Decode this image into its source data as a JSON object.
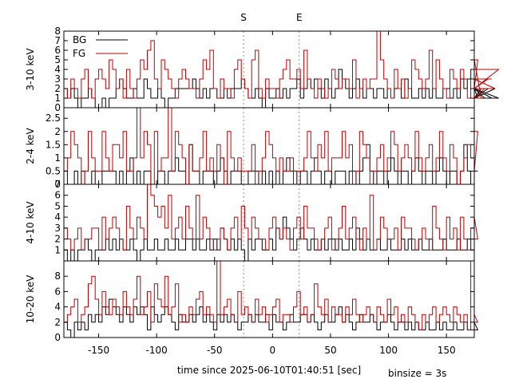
{
  "chart_data": {
    "type": "line",
    "step": true,
    "xlabel": "time since 2025-06-10T01:40:51 [sec]",
    "binsize_label": "binsize = 3s",
    "xlim": [
      -180,
      174
    ],
    "xticks": [
      -150,
      -100,
      -50,
      0,
      50,
      100,
      150
    ],
    "markers": [
      {
        "label": "S",
        "x": -25
      },
      {
        "label": "E",
        "x": 23
      }
    ],
    "legend": {
      "placement": "top-left",
      "entries": [
        "BG",
        "FG"
      ]
    },
    "colors": {
      "BG": "#000000",
      "FG": "#c00000",
      "marker": "#777777"
    },
    "x_start": -180,
    "bin_width": 3,
    "panels": [
      {
        "ylabel": "3-10 keV",
        "ylim": [
          0,
          8
        ],
        "yticks": [
          0,
          1,
          2,
          3,
          4,
          5,
          6,
          7,
          8
        ],
        "series": [
          {
            "name": "BG",
            "values": [
              2,
              1,
              2,
              1,
              0,
              1,
              1,
              2,
              1,
              0,
              0,
              1,
              0,
              1,
              1,
              2,
              3,
              2,
              1,
              1,
              2,
              1,
              1,
              3,
              2,
              1,
              1,
              2,
              1,
              0,
              1,
              1,
              2,
              2,
              2,
              2,
              2,
              3,
              2,
              1,
              2,
              1,
              2,
              2,
              1,
              1,
              2,
              1,
              2,
              2,
              2,
              3,
              2,
              1,
              1,
              2,
              1,
              0,
              2,
              1,
              1,
              2,
              1,
              2,
              1,
              2,
              2,
              3,
              1,
              2,
              3,
              2,
              3,
              2,
              1,
              3,
              2,
              1,
              2,
              4,
              3,
              2,
              1,
              2,
              3,
              2,
              1,
              2,
              2,
              1,
              2,
              2,
              1,
              2,
              1,
              2,
              2,
              1,
              3,
              2,
              1,
              1,
              2,
              1,
              2,
              1,
              2,
              1,
              1,
              2,
              2,
              1,
              2,
              1,
              3,
              2,
              3,
              4,
              2,
              1,
              2,
              1,
              2,
              1,
              2,
              1
            ]
          },
          {
            "name": "FG",
            "values": [
              2,
              1,
              3,
              2,
              1,
              3,
              4,
              2,
              1,
              3,
              4,
              3,
              2,
              5,
              4,
              2,
              3,
              1,
              4,
              2,
              1,
              3,
              5,
              4,
              6,
              7,
              3,
              2,
              5,
              4,
              3,
              2,
              1,
              3,
              4,
              3,
              2,
              2,
              1,
              3,
              5,
              4,
              6,
              2,
              1,
              3,
              2,
              2,
              1,
              4,
              5,
              3,
              2,
              1,
              5,
              6,
              2,
              1,
              3,
              2,
              2,
              1,
              3,
              4,
              5,
              3,
              3,
              4,
              2,
              6,
              3,
              2,
              1,
              3,
              2,
              1,
              2,
              4,
              3,
              2,
              3,
              3,
              2,
              5,
              1,
              2,
              3,
              2,
              3,
              3,
              8,
              5,
              3,
              2,
              1,
              4,
              2,
              3,
              1,
              2,
              5,
              4,
              3,
              2,
              3,
              6,
              2,
              5,
              3,
              2,
              1,
              4,
              3,
              2,
              4,
              3,
              1,
              4,
              2,
              5,
              1,
              2,
              3,
              3,
              2,
              4
            ]
          }
        ]
      },
      {
        "ylabel": "2-4 keV",
        "ylim": [
          0,
          2.9
        ],
        "yticks": [
          0,
          0.5,
          1,
          1.5,
          2,
          2.5
        ],
        "series": [
          {
            "name": "BG",
            "values": [
              0.5,
              0,
              0,
              0.5,
              0,
              0.5,
              0,
              0,
              0.5,
              0,
              0,
              0.5,
              0.5,
              0.5,
              0.5,
              0,
              0.5,
              0,
              0.5,
              1,
              0,
              0.5,
              0,
              0.5,
              0.5,
              0,
              0,
              0.5,
              0.5,
              0,
              0.5,
              0.5,
              1,
              0.5,
              0.5,
              0,
              1.5,
              0.5,
              0.5,
              0,
              0.5,
              0.5,
              0.5,
              0,
              0.5,
              1,
              0.5,
              0,
              0.5,
              0.5,
              0.5,
              0,
              0,
              0.5,
              0.5,
              0.5,
              0,
              0.5,
              0,
              0.5,
              0,
              0.5,
              0,
              0.5,
              1,
              0.5,
              0.5,
              0,
              0.5,
              0.5,
              0,
              0.5,
              1,
              0.5,
              0,
              0.5,
              0.5,
              0,
              0.5,
              0.5,
              0.5,
              0,
              0.5,
              0.5,
              0,
              0.5,
              1,
              1.5,
              0.5,
              0,
              0.5,
              0.5,
              0,
              0.5,
              1,
              0.5,
              0,
              0.5,
              0.5,
              0,
              0.5,
              1,
              0.5,
              0,
              0.5,
              0.5,
              0,
              0.5,
              1,
              0.5,
              0,
              0.5,
              0.5,
              0,
              0.5,
              1.5,
              0.5,
              0,
              0.5,
              0.5
            ]
          },
          {
            "name": "FG",
            "values": [
              0.5,
              1,
              2,
              1.5,
              1,
              0,
              0.5,
              2,
              1,
              0.5,
              0.5,
              2,
              1,
              0.5,
              1.5,
              1.5,
              1,
              2,
              0.5,
              0.5,
              1,
              3,
              1,
              2,
              1.5,
              0,
              2,
              0.5,
              1,
              1,
              3,
              0.5,
              2,
              1.5,
              1,
              0,
              1.5,
              0.5,
              0.5,
              1,
              2,
              0.5,
              1,
              0.5,
              1.5,
              1,
              0,
              2,
              1,
              0.5,
              1,
              0.5,
              0.5,
              0.5,
              1.5,
              0,
              0.5,
              1,
              2,
              1.5,
              1,
              0.5,
              1,
              0.5,
              0.5,
              1,
              0,
              0.5,
              0.5,
              1,
              2,
              1,
              0.5,
              1.5,
              1,
              2,
              0.5,
              1,
              1,
              1,
              2,
              1,
              1.5,
              0,
              0.5,
              2,
              1.5,
              1,
              0,
              0.5,
              1,
              1.5,
              0.5,
              1,
              2,
              1.5,
              0.5,
              1,
              1.5,
              1,
              0.5,
              2,
              1,
              0.5,
              1,
              1.5,
              0.5,
              1,
              2,
              1,
              0.5,
              1.5,
              1,
              0,
              0.5,
              1,
              1.5,
              1,
              0.5,
              2
            ]
          }
        ]
      },
      {
        "ylabel": "4-10 keV",
        "ylim": [
          0,
          7
        ],
        "yticks": [
          1,
          2,
          3,
          4,
          5,
          6,
          7
        ],
        "series": [
          {
            "name": "BG",
            "values": [
              1,
              0,
              1,
              0,
              1,
              1,
              2,
              1,
              0,
              1,
              1,
              1,
              2,
              1,
              2,
              1,
              2,
              1,
              1,
              2,
              1,
              0,
              1,
              2,
              1,
              1,
              2,
              1,
              1,
              2,
              1,
              1,
              2,
              1,
              1,
              2,
              2,
              1,
              2,
              1,
              1,
              2,
              1,
              2,
              1,
              3,
              2,
              1,
              2,
              1,
              2,
              1,
              0,
              2,
              1,
              2,
              2,
              1,
              1,
              2,
              1,
              3,
              2,
              4,
              3,
              2,
              1,
              2,
              3,
              2,
              1,
              2,
              1,
              1,
              2,
              1,
              2,
              2,
              1,
              2,
              1,
              1,
              2,
              1,
              3,
              2,
              1,
              2,
              1,
              1,
              2,
              1,
              1,
              2,
              1,
              1,
              1,
              2,
              1,
              2,
              1,
              1,
              2,
              1,
              1,
              2,
              1,
              1,
              1,
              2,
              1,
              1,
              1,
              2,
              1,
              1,
              2,
              1
            ]
          },
          {
            "name": "FG",
            "values": [
              3,
              2,
              1,
              2,
              3,
              1,
              2,
              2,
              3,
              3,
              1,
              4,
              2,
              3,
              4,
              3,
              2,
              1,
              5,
              3,
              2,
              4,
              3,
              2,
              7,
              6,
              5,
              4,
              5,
              3,
              6,
              2,
              3,
              4,
              2,
              5,
              3,
              2,
              6,
              2,
              4,
              3,
              2,
              1,
              2,
              3,
              2,
              1,
              3,
              4,
              2,
              5,
              3,
              2,
              4,
              3,
              2,
              2,
              1,
              3,
              4,
              3,
              2,
              3,
              2,
              1,
              3,
              4,
              2,
              5,
              3,
              3,
              2,
              1,
              2,
              3,
              4,
              1,
              2,
              3,
              5,
              2,
              3,
              4,
              2,
              1,
              3,
              2,
              6,
              1,
              2,
              4,
              3,
              2,
              2,
              3,
              1,
              4,
              3,
              3,
              2,
              1,
              2,
              3,
              2,
              1,
              5,
              3,
              2,
              1,
              4,
              2,
              3,
              1,
              4,
              2,
              1,
              3,
              4,
              2
            ]
          }
        ]
      },
      {
        "ylabel": "10-20 keV",
        "ylim": [
          0,
          10
        ],
        "yticks": [
          0,
          2,
          4,
          6,
          8
        ],
        "series": [
          {
            "name": "BG",
            "values": [
              2,
              1,
              0,
              2,
              1,
              2,
              1,
              3,
              2,
              3,
              2,
              4,
              3,
              5,
              4,
              3,
              2,
              4,
              3,
              2,
              4,
              3,
              4,
              3,
              1,
              4,
              3,
              2,
              3,
              4,
              3,
              2,
              1,
              3,
              2,
              2,
              3,
              2,
              3,
              4,
              2,
              3,
              2,
              1,
              3,
              2,
              3,
              2,
              3,
              2,
              1,
              2,
              2,
              3,
              2,
              3,
              2,
              2,
              3,
              1,
              3,
              2,
              2,
              1,
              2,
              3,
              2,
              2,
              3,
              3,
              2,
              3,
              2,
              1,
              2,
              3,
              2,
              2,
              3,
              4,
              2,
              3,
              2,
              1,
              2,
              3,
              2,
              2,
              3,
              2,
              1,
              2,
              2,
              3,
              2,
              1,
              2,
              2,
              1,
              2,
              1,
              2,
              1,
              1,
              2,
              1,
              1,
              2,
              1,
              2,
              1,
              1,
              2,
              1,
              1,
              2,
              1,
              1,
              2,
              1
            ]
          },
          {
            "name": "FG",
            "values": [
              2,
              3,
              4,
              5,
              2,
              3,
              4,
              7,
              8,
              5,
              3,
              6,
              4,
              3,
              5,
              4,
              3,
              6,
              4,
              3,
              5,
              8,
              3,
              4,
              6,
              2,
              7,
              5,
              4,
              8,
              3,
              4,
              7,
              2,
              3,
              2,
              4,
              3,
              5,
              6,
              3,
              4,
              3,
              2,
              10,
              3,
              4,
              5,
              3,
              2,
              6,
              3,
              4,
              3,
              2,
              5,
              3,
              4,
              2,
              3,
              4,
              5,
              2,
              3,
              3,
              2,
              4,
              6,
              3,
              4,
              2,
              3,
              7,
              4,
              3,
              5,
              2,
              4,
              3,
              3,
              2,
              4,
              3,
              5,
              3,
              2,
              3,
              4,
              3,
              2,
              4,
              3,
              2,
              5,
              3,
              4,
              2,
              3,
              2,
              4,
              3,
              2,
              1,
              3,
              2,
              3,
              4,
              2,
              3,
              4,
              3,
              2,
              4,
              3,
              2,
              3,
              1,
              10,
              3,
              2
            ]
          }
        ]
      }
    ]
  }
}
